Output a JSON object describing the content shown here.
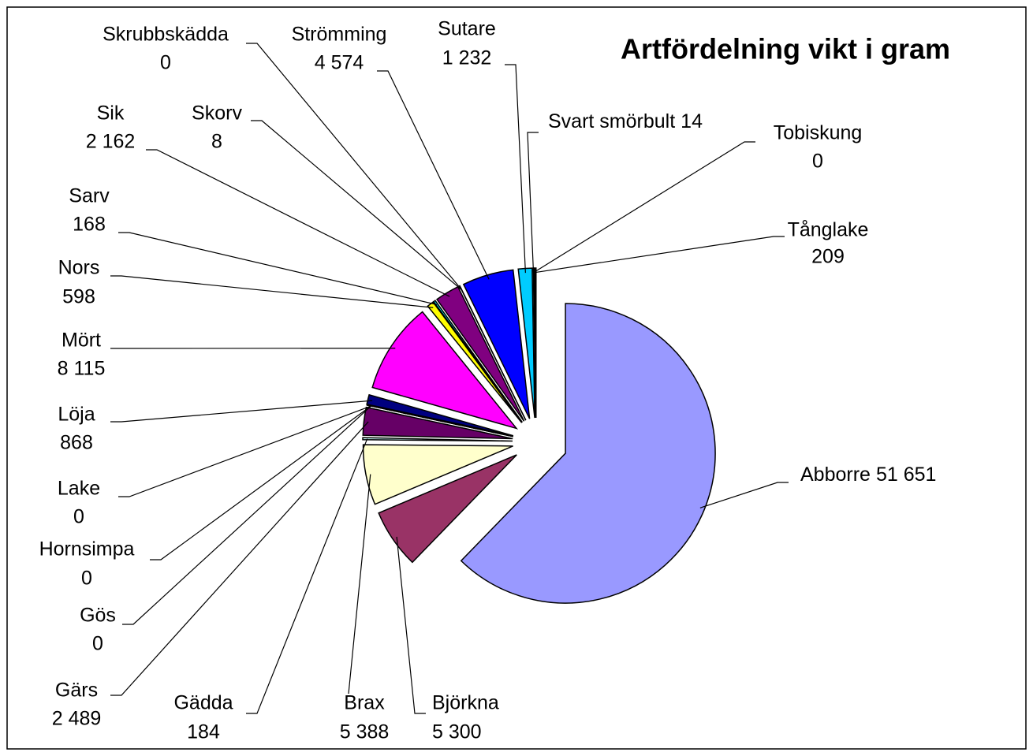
{
  "chart_data": {
    "type": "pie",
    "title": "Artfördelning vikt i gram",
    "categories": [
      "Abborre",
      "Björkna",
      "Brax",
      "Gädda",
      "Gärs",
      "Gös",
      "Hornsimpa",
      "Lake",
      "Löja",
      "Mört",
      "Nors",
      "Sarv",
      "Sik",
      "Skorv",
      "Skrubbskädda",
      "Strömming",
      "Sutare",
      "Svart smörbult",
      "Tobiskung",
      "Tånglake"
    ],
    "values": [
      51651,
      5300,
      5388,
      184,
      2489,
      0,
      0,
      0,
      868,
      8115,
      598,
      168,
      2162,
      8,
      0,
      4574,
      1232,
      14,
      0,
      209
    ],
    "value_labels": [
      "51 651",
      "5 300",
      "5 388",
      "184",
      "2 489",
      "0",
      "0",
      "0",
      "868",
      "8 115",
      "598",
      "168",
      "2 162",
      "8",
      "0",
      "4 574",
      "1 232",
      "14",
      "0",
      "209"
    ],
    "colors": [
      "#9999ff",
      "#993366",
      "#ffffcc",
      "#ccffff",
      "#660066",
      "#ff8080",
      "#0066cc",
      "#ccccff",
      "#000080",
      "#ff00ff",
      "#ffff00",
      "#00ffff",
      "#800080",
      "#800000",
      "#008080",
      "#0000ff",
      "#00ccff",
      "#ccffff",
      "#ccffcc",
      "#000000"
    ]
  }
}
